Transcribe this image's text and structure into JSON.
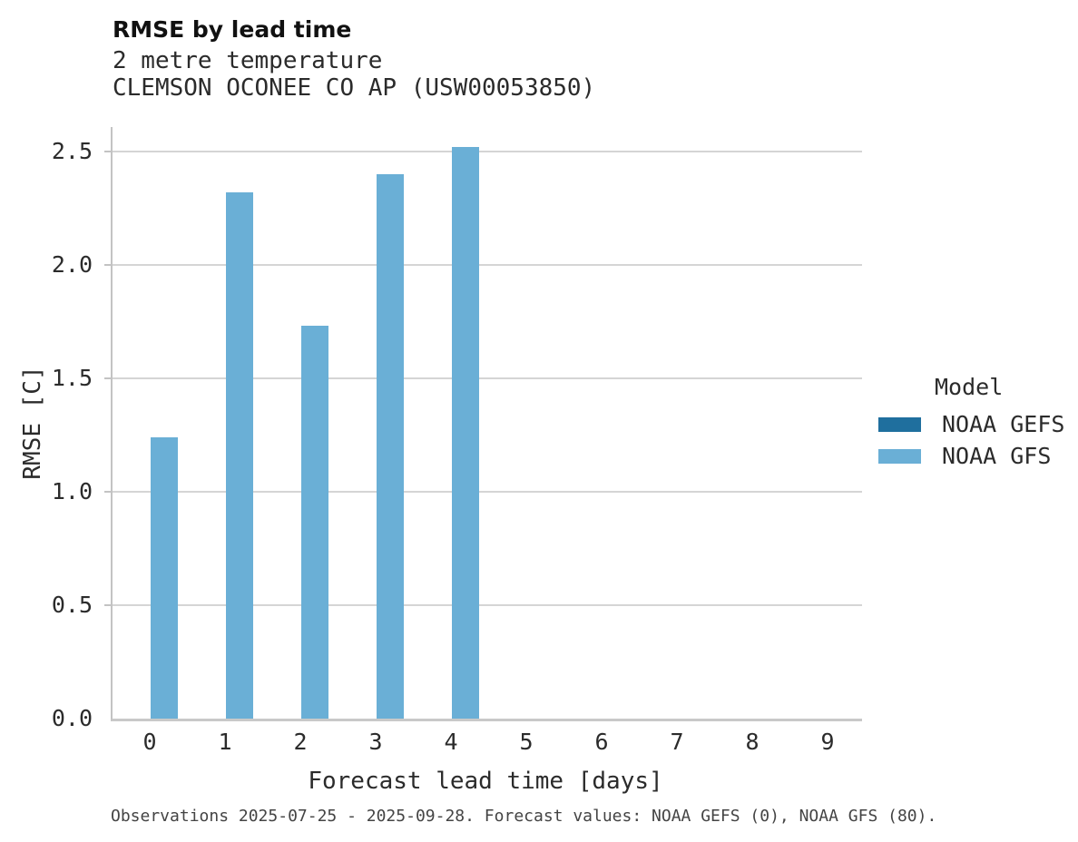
{
  "header": {
    "title": "RMSE by lead time",
    "subtitle_line1": "2 metre temperature",
    "subtitle_line2": "CLEMSON OCONEE CO AP (USW00053850)"
  },
  "legend": {
    "title": "Model",
    "items": [
      {
        "label": "NOAA GEFS",
        "color": "#1f6f9e"
      },
      {
        "label": "NOAA GFS",
        "color": "#6aafd6"
      }
    ]
  },
  "footer": {
    "note": "Observations 2025-07-25 - 2025-09-28. Forecast values: NOAA GEFS (0), NOAA GFS (80)."
  },
  "chart_data": {
    "type": "bar",
    "title": "RMSE by lead time",
    "subtitle": [
      "2 metre temperature",
      "CLEMSON OCONEE CO AP (USW00053850)"
    ],
    "xlabel": "Forecast lead time [days]",
    "ylabel": "RMSE [C]",
    "categories": [
      0,
      1,
      2,
      3,
      4,
      5,
      6,
      7,
      8,
      9
    ],
    "series": [
      {
        "name": "NOAA GEFS",
        "color": "#1f6f9e",
        "values": [
          null,
          null,
          null,
          null,
          null,
          null,
          null,
          null,
          null,
          null
        ]
      },
      {
        "name": "NOAA GFS",
        "color": "#6aafd6",
        "values": [
          1.24,
          2.32,
          1.73,
          2.4,
          2.52,
          null,
          null,
          null,
          null,
          null
        ]
      }
    ],
    "ylim": [
      0,
      2.6
    ],
    "yticks": [
      0.0,
      0.5,
      1.0,
      1.5,
      2.0,
      2.5
    ],
    "grid": true,
    "grid_color": "#d5d5d5",
    "spine_color": "#c3c3c3",
    "legend_title": "Model",
    "legend_position": "right",
    "annotation": "Observations 2025-07-25 - 2025-09-28. Forecast values: NOAA GEFS (0), NOAA GFS (80)."
  }
}
